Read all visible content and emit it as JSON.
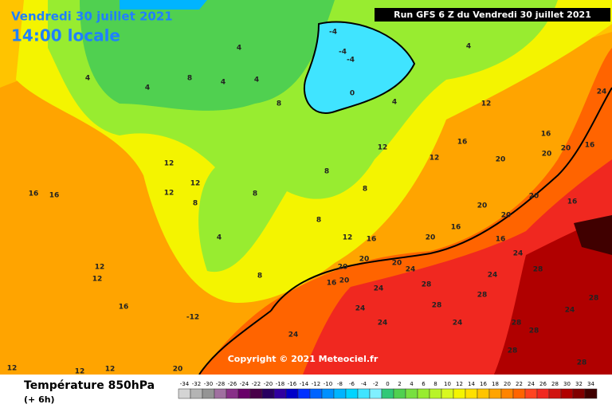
{
  "header": {
    "date": "Vendredi 30 juillet 2021",
    "local_time": "14:00 locale",
    "run": "Run GFS 6 Z du Vendredi 30 juillet 2021"
  },
  "copyright": "Copyright © 2021 Meteociel.fr",
  "legend": {
    "title": "Température 850hPa",
    "lead": "(+ 6h)",
    "scale": [
      -34,
      -32,
      -30,
      -28,
      -26,
      -24,
      -22,
      -20,
      -18,
      -16,
      -14,
      -12,
      -10,
      -8,
      -6,
      -4,
      -2,
      0,
      2,
      4,
      6,
      8,
      10,
      12,
      14,
      16,
      18,
      20,
      22,
      24,
      26,
      28,
      30,
      32,
      34
    ],
    "colors": [
      "#d4d4d4",
      "#b4b4b4",
      "#949494",
      "#a070a0",
      "#883088",
      "#680068",
      "#480048",
      "#280060",
      "#3000a0",
      "#0000c8",
      "#0030ff",
      "#0064ff",
      "#0090ff",
      "#00b4ff",
      "#00d4ff",
      "#40e4ff",
      "#80f0ff",
      "#30c878",
      "#50d050",
      "#78e040",
      "#98ec30",
      "#b8f428",
      "#d8f820",
      "#f4f400",
      "#ffe000",
      "#ffc400",
      "#ffa400",
      "#ff8400",
      "#ff6400",
      "#ff4420",
      "#f02820",
      "#d01410",
      "#b00000",
      "#800000",
      "#400000"
    ]
  },
  "map_labels": [
    -4,
    -4,
    -4,
    4,
    0,
    4,
    4,
    4,
    4,
    8,
    4,
    4,
    8,
    12,
    12,
    16,
    16,
    16,
    12,
    16,
    16,
    12,
    12,
    12,
    -12,
    12,
    12,
    8,
    8,
    4,
    8,
    8,
    8,
    8,
    12,
    12,
    12,
    16,
    20,
    16,
    20,
    20,
    20,
    20,
    20,
    24,
    24,
    20,
    20,
    16,
    20,
    24,
    24,
    28,
    28,
    24,
    28,
    24,
    28,
    24,
    24,
    28,
    28,
    28,
    20,
    24,
    16,
    12,
    16,
    20,
    20,
    16,
    24,
    28,
    28
  ]
}
